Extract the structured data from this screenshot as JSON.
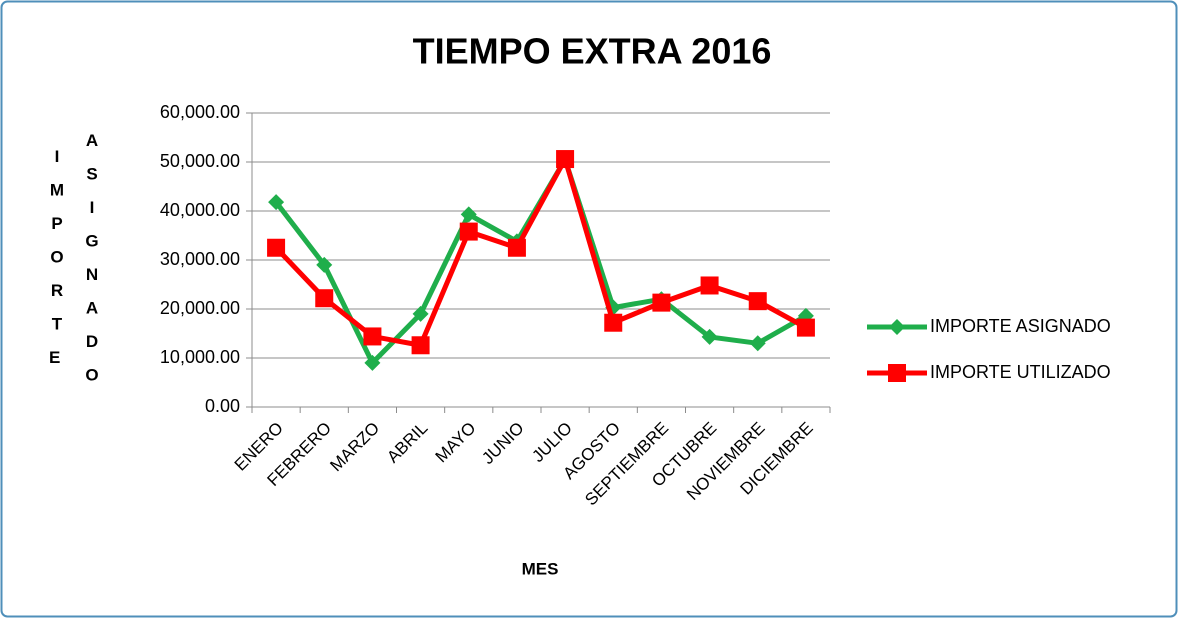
{
  "chart_data": {
    "type": "line",
    "title": "TIEMPO EXTRA 2016",
    "xlabel": "MES",
    "ylabel": "IMPORTE ASIGNADO",
    "categories": [
      "ENERO",
      "FEBRERO",
      "MARZO",
      "ABRIL",
      "MAYO",
      "JUNIO",
      "JULIO",
      "AGOSTO",
      "SEPTIEMBRE",
      "OCTUBRE",
      "NOVIEMBRE",
      "DICIEMBRE"
    ],
    "series": [
      {
        "name": "IMPORTE ASIGNADO",
        "color": "#1fae4b",
        "marker": "diamond",
        "values": [
          41800,
          29000,
          9000,
          19000,
          39300,
          33800,
          50500,
          20300,
          22000,
          14300,
          13000,
          18600
        ]
      },
      {
        "name": "IMPORTE UTILIZADO",
        "color": "#ff0000",
        "marker": "square",
        "values": [
          32500,
          22200,
          14400,
          12600,
          35800,
          32500,
          50600,
          17200,
          21300,
          24800,
          21600,
          16200
        ]
      }
    ],
    "ylim": [
      0,
      60000
    ],
    "yticks": [
      {
        "value": 0,
        "label": "0.00"
      },
      {
        "value": 10000,
        "label": "10,000.00"
      },
      {
        "value": 20000,
        "label": "20,000.00"
      },
      {
        "value": 30000,
        "label": "30,000.00"
      },
      {
        "value": 40000,
        "label": "40,000.00"
      },
      {
        "value": 50000,
        "label": "50,000.00"
      },
      {
        "value": 60000,
        "label": "60,000.00"
      }
    ],
    "grid": true,
    "legend": "right"
  }
}
